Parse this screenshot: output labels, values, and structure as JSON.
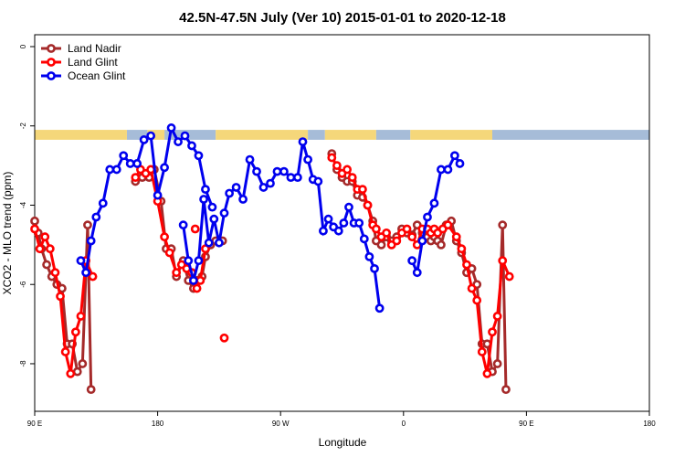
{
  "chart_data": {
    "type": "line",
    "title": "42.5N-47.5N July (Ver 10)   2015-01-01 to 2020-12-18",
    "xlabel": "Longitude",
    "ylabel": "XCO2 - MLO trend (ppm)",
    "xlim": [
      -90,
      90
    ],
    "ylim": [
      -9.2,
      0.3
    ],
    "x_ticks": [
      -90,
      -54,
      -18,
      18,
      54,
      90
    ],
    "x_tick_labels": [
      "90 E",
      "180",
      "90 W",
      "0",
      "90 E",
      "180"
    ],
    "y_ticks": [
      0,
      -2,
      -4,
      -6,
      -8
    ],
    "y_tick_labels": [
      "0",
      "-2",
      "-4",
      "-6",
      "-8"
    ],
    "grid": false,
    "legend_position": "top-left",
    "colors": {
      "land_nadir": "#a52a2a",
      "land_glint": "#ff0000",
      "ocean_glint": "#0000ee",
      "band_land": "#f5d77a",
      "band_ocean": "#a6bcd8"
    },
    "series": [
      {
        "name": "Land Nadir",
        "color": "#a52a2a",
        "points": [
          [
            -90.0,
            -4.4
          ],
          [
            -89.0,
            -4.7
          ],
          [
            -88.0,
            -5.1
          ],
          [
            -86.5,
            -5.5
          ],
          [
            -85.0,
            -5.8
          ],
          [
            -83.5,
            -6.0
          ],
          [
            -82.0,
            -6.1
          ],
          [
            -80.5,
            -7.5
          ],
          [
            -79.0,
            -7.5
          ],
          [
            -77.5,
            -8.2
          ],
          [
            -76.0,
            -8.0
          ],
          [
            -74.5,
            -4.5
          ],
          [
            -73.5,
            -8.65
          ]
        ],
        "gaps": [
          [
            [
              -60.5,
              -3.4
            ],
            [
              -58.5,
              -3.3
            ],
            [
              -56.5,
              -3.3
            ],
            [
              -55.0,
              -3.1
            ],
            [
              -53.0,
              -3.9
            ],
            [
              -51.5,
              -5.1
            ],
            [
              -50.0,
              -5.1
            ],
            [
              -48.5,
              -5.8
            ],
            [
              -46.5,
              -5.4
            ],
            [
              -45.0,
              -5.9
            ],
            [
              -43.5,
              -6.1
            ],
            [
              -42.5,
              -5.9
            ],
            [
              -41.0,
              -5.8
            ],
            [
              -40.0,
              -5.3
            ],
            [
              -38.5,
              -5.0
            ],
            [
              -37.0,
              -4.9
            ],
            [
              -35.0,
              -4.9
            ]
          ],
          [
            [
              -3.0,
              -2.7
            ],
            [
              -1.5,
              -3.1
            ],
            [
              0.0,
              -3.3
            ],
            [
              1.5,
              -3.4
            ],
            [
              3.0,
              -3.4
            ],
            [
              4.5,
              -3.75
            ],
            [
              6.0,
              -3.8
            ],
            [
              7.5,
              -4.0
            ],
            [
              9.0,
              -4.4
            ],
            [
              10.0,
              -4.9
            ],
            [
              11.5,
              -5.0
            ],
            [
              13.0,
              -4.8
            ],
            [
              14.5,
              -4.9
            ],
            [
              16.0,
              -4.8
            ],
            [
              17.5,
              -4.6
            ],
            [
              19.0,
              -4.7
            ],
            [
              20.5,
              -4.75
            ],
            [
              22.0,
              -4.5
            ],
            [
              23.5,
              -4.7
            ],
            [
              25.0,
              -4.8
            ],
            [
              26.0,
              -4.9
            ],
            [
              27.0,
              -4.8
            ],
            [
              28.0,
              -4.9
            ],
            [
              29.0,
              -5.0
            ],
            [
              30.5,
              -4.5
            ],
            [
              32.0,
              -4.4
            ],
            [
              33.5,
              -4.9
            ],
            [
              35.0,
              -5.2
            ],
            [
              36.5,
              -5.7
            ],
            [
              38.0,
              -5.6
            ],
            [
              39.5,
              -6.0
            ],
            [
              41.0,
              -7.5
            ],
            [
              42.5,
              -7.5
            ],
            [
              44.0,
              -8.2
            ],
            [
              45.5,
              -8.0
            ],
            [
              47.0,
              -4.5
            ],
            [
              48.0,
              -8.65
            ]
          ]
        ]
      },
      {
        "name": "Land Glint",
        "color": "#ff0000",
        "points": [
          [
            -90.0,
            -4.6
          ],
          [
            -88.5,
            -5.1
          ],
          [
            -87.0,
            -4.8
          ],
          [
            -85.5,
            -5.1
          ],
          [
            -84.0,
            -5.7
          ],
          [
            -82.5,
            -6.3
          ],
          [
            -81.0,
            -7.7
          ],
          [
            -79.5,
            -8.25
          ],
          [
            -78.0,
            -7.2
          ],
          [
            -76.5,
            -6.8
          ],
          [
            -75.0,
            -5.4
          ],
          [
            -73.0,
            -5.8
          ]
        ],
        "gaps": [
          [
            [
              -60.5,
              -3.3
            ],
            [
              -59.0,
              -3.1
            ],
            [
              -57.5,
              -3.2
            ],
            [
              -56.0,
              -3.1
            ],
            [
              -54.0,
              -3.9
            ],
            [
              -52.0,
              -4.8
            ],
            [
              -50.5,
              -5.2
            ],
            [
              -48.5,
              -5.7
            ],
            [
              -47.0,
              -5.5
            ],
            [
              -45.5,
              -5.6
            ],
            [
              -44.0,
              -5.7
            ],
            [
              -42.5,
              -6.1
            ],
            [
              -41.5,
              -5.9
            ],
            [
              -40.0,
              -5.1
            ]
          ],
          [
            [
              -43.0,
              -4.6
            ]
          ],
          [
            [
              -34.5,
              -7.35
            ]
          ],
          [
            [
              -3.0,
              -2.8
            ],
            [
              -1.5,
              -3.0
            ],
            [
              0.0,
              -3.2
            ],
            [
              1.5,
              -3.1
            ],
            [
              3.0,
              -3.3
            ],
            [
              4.5,
              -3.6
            ],
            [
              6.0,
              -3.6
            ],
            [
              7.5,
              -4.0
            ],
            [
              9.0,
              -4.5
            ],
            [
              10.0,
              -4.6
            ],
            [
              11.5,
              -4.8
            ],
            [
              13.0,
              -4.7
            ],
            [
              14.5,
              -5.0
            ],
            [
              16.0,
              -4.9
            ],
            [
              17.5,
              -4.7
            ],
            [
              19.0,
              -4.6
            ],
            [
              20.5,
              -4.8
            ],
            [
              22.0,
              -5.0
            ],
            [
              23.5,
              -4.6
            ],
            [
              25.0,
              -4.6
            ],
            [
              26.0,
              -4.7
            ],
            [
              27.0,
              -4.6
            ],
            [
              28.0,
              -4.7
            ],
            [
              29.5,
              -4.6
            ],
            [
              31.0,
              -4.5
            ],
            [
              33.5,
              -4.8
            ],
            [
              35.0,
              -5.1
            ],
            [
              36.5,
              -5.5
            ],
            [
              38.0,
              -6.1
            ],
            [
              39.5,
              -6.4
            ],
            [
              41.0,
              -7.7
            ],
            [
              42.5,
              -8.25
            ],
            [
              44.0,
              -7.2
            ],
            [
              45.5,
              -6.8
            ],
            [
              47.0,
              -5.4
            ],
            [
              49.0,
              -5.8
            ]
          ]
        ]
      },
      {
        "name": "Ocean Glint",
        "color": "#0000ee",
        "points": [
          [
            -76.5,
            -5.4
          ],
          [
            -75.0,
            -5.7
          ],
          [
            -73.5,
            -4.9
          ],
          [
            -72.0,
            -4.3
          ],
          [
            -70.0,
            -3.95
          ],
          [
            -68.0,
            -3.1
          ],
          [
            -66.0,
            -3.1
          ],
          [
            -64.0,
            -2.75
          ],
          [
            -62.0,
            -2.95
          ],
          [
            -60.0,
            -2.95
          ],
          [
            -58.0,
            -2.35
          ],
          [
            -56.0,
            -2.25
          ],
          [
            -54.0,
            -3.75
          ],
          [
            -52.0,
            -3.05
          ],
          [
            -50.0,
            -2.05
          ],
          [
            -48.0,
            -2.4
          ],
          [
            -46.0,
            -2.25
          ],
          [
            -44.0,
            -2.5
          ],
          [
            -42.0,
            -2.75
          ],
          [
            -40.0,
            -3.6
          ],
          [
            -38.0,
            -4.05
          ]
        ],
        "gaps": [
          [
            [
              -46.5,
              -4.5
            ],
            [
              -45.0,
              -5.4
            ],
            [
              -43.5,
              -5.9
            ],
            [
              -42.0,
              -5.4
            ],
            [
              -40.5,
              -3.85
            ],
            [
              -39.0,
              -4.95
            ],
            [
              -37.5,
              -4.35
            ],
            [
              -36.0,
              -4.95
            ],
            [
              -34.5,
              -4.2
            ],
            [
              -33.0,
              -3.7
            ],
            [
              -31.0,
              -3.55
            ],
            [
              -29.0,
              -3.85
            ],
            [
              -27.0,
              -2.85
            ],
            [
              -25.0,
              -3.15
            ],
            [
              -23.0,
              -3.55
            ],
            [
              -21.0,
              -3.45
            ],
            [
              -19.0,
              -3.15
            ],
            [
              -17.0,
              -3.15
            ],
            [
              -15.0,
              -3.3
            ],
            [
              -13.0,
              -3.3
            ],
            [
              -11.5,
              -2.4
            ],
            [
              -10.0,
              -2.85
            ],
            [
              -8.5,
              -3.35
            ],
            [
              -7.0,
              -3.4
            ],
            [
              -5.5,
              -4.65
            ],
            [
              -4.0,
              -4.35
            ],
            [
              -2.5,
              -4.55
            ],
            [
              -1.0,
              -4.65
            ],
            [
              0.5,
              -4.45
            ],
            [
              2.0,
              -4.05
            ],
            [
              3.5,
              -4.45
            ],
            [
              5.0,
              -4.45
            ],
            [
              6.5,
              -4.85
            ],
            [
              8.0,
              -5.3
            ],
            [
              9.5,
              -5.6
            ],
            [
              11.0,
              -6.6
            ]
          ],
          [
            [
              20.5,
              -5.4
            ],
            [
              22.0,
              -5.7
            ],
            [
              23.5,
              -4.9
            ],
            [
              25.0,
              -4.3
            ],
            [
              27.0,
              -3.95
            ],
            [
              29.0,
              -3.1
            ],
            [
              31.0,
              -3.1
            ],
            [
              33.0,
              -2.75
            ],
            [
              34.5,
              -2.95
            ]
          ]
        ]
      }
    ],
    "surface_band": {
      "y_range": [
        -2.35,
        -2.1
      ],
      "segments": [
        {
          "from": -90,
          "to": -63,
          "type": "land"
        },
        {
          "from": -63,
          "to": -57,
          "type": "ocean"
        },
        {
          "from": -57,
          "to": -52,
          "type": "land"
        },
        {
          "from": -52,
          "to": -37,
          "type": "ocean"
        },
        {
          "from": -37,
          "to": -10,
          "type": "land"
        },
        {
          "from": -10,
          "to": -5,
          "type": "ocean"
        },
        {
          "from": -5,
          "to": 10,
          "type": "land"
        },
        {
          "from": 10,
          "to": 20,
          "type": "ocean"
        },
        {
          "from": 20,
          "to": 44,
          "type": "land"
        },
        {
          "from": 44,
          "to": 90,
          "type": "ocean"
        }
      ]
    }
  }
}
